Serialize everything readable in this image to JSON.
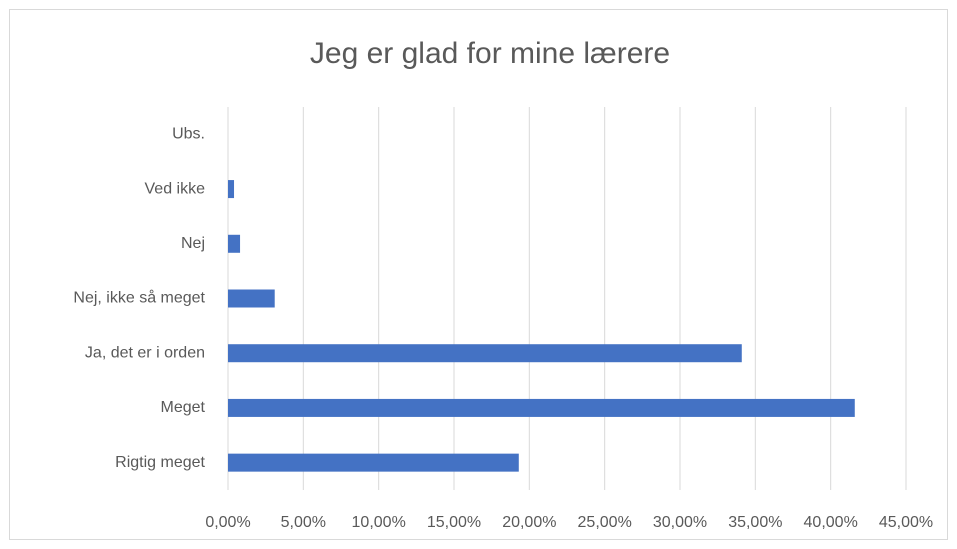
{
  "chart_data": {
    "type": "bar",
    "orientation": "horizontal",
    "title": "Jeg er glad for mine lærere",
    "categories": [
      "Ubs.",
      "Ved ikke",
      "Nej",
      "Nej, ikke så meget",
      "Ja, det er i orden",
      "Meget",
      "Rigtig meget"
    ],
    "values": [
      0,
      0.4,
      0.8,
      3.1,
      34.1,
      41.6,
      19.3
    ],
    "color": "#4472c4",
    "xlim": [
      0,
      45
    ],
    "xticks": [
      {
        "value": 0,
        "label": "0,00%"
      },
      {
        "value": 5,
        "label": "5,00%"
      },
      {
        "value": 10,
        "label": "10,00%"
      },
      {
        "value": 15,
        "label": "15,00%"
      },
      {
        "value": 20,
        "label": "20,00%"
      },
      {
        "value": 25,
        "label": "25,00%"
      },
      {
        "value": 30,
        "label": "30,00%"
      },
      {
        "value": 35,
        "label": "35,00%"
      },
      {
        "value": 40,
        "label": "40,00%"
      },
      {
        "value": 45,
        "label": "45,00%"
      }
    ],
    "grid": true
  }
}
